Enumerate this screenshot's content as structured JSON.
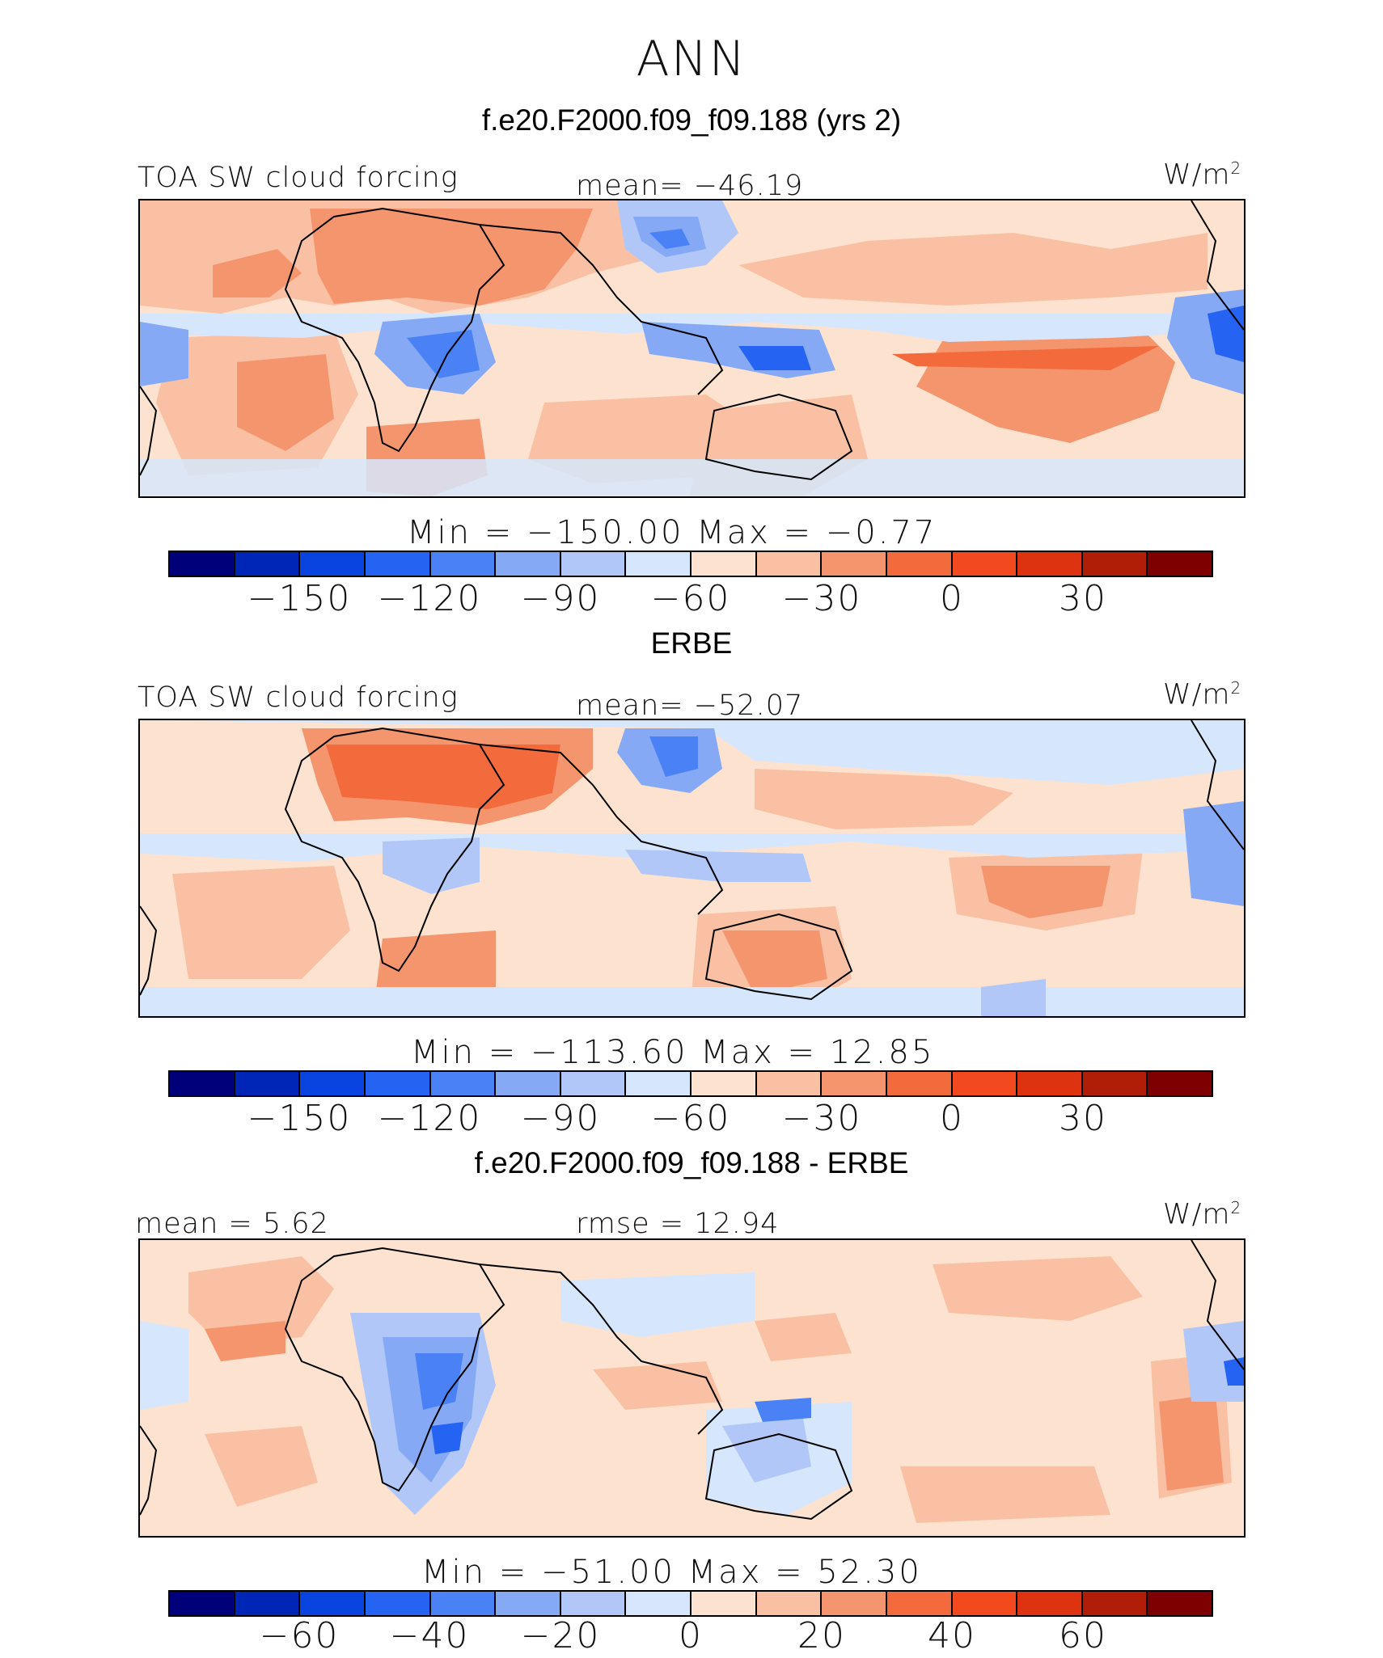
{
  "figure": {
    "title": "ANN",
    "case_title": "f.e20.F2000.f09_f09.188 (yrs 2)",
    "obs_title": "ERBE",
    "diff_title": "f.e20.F2000.f09_f09.188 - ERBE"
  },
  "colors": {
    "palette": [
      "#00007a",
      "#0026b8",
      "#0a44e0",
      "#2563f2",
      "#4a82f5",
      "#86a9f6",
      "#b1c7f8",
      "#d6e6fc",
      "#fde3cf",
      "#fac0a3",
      "#f4956e",
      "#f36a3c",
      "#f2491f",
      "#de3310",
      "#b01e08",
      "#7f0000"
    ]
  },
  "panels": [
    {
      "variable": "TOA SW cloud forcing",
      "mean_text": "mean= −46.19",
      "units": "W/m",
      "units_sup": "2",
      "minmax_text": "Min  =  −150.00  Max  =   −0.77",
      "tick_labels": [
        "−150",
        "−120",
        "−90",
        "−60",
        "−30",
        "0",
        "30"
      ]
    },
    {
      "variable": "TOA SW cloud forcing",
      "mean_text": "mean= −52.07",
      "units": "W/m",
      "units_sup": "2",
      "minmax_text": "Min  =  −113.60  Max  =   12.85",
      "tick_labels": [
        "−150",
        "−120",
        "−90",
        "−60",
        "−30",
        "0",
        "30"
      ]
    },
    {
      "mean_text": "mean =   5.62",
      "rmse_text": "rmse =   12.94",
      "units": "W/m",
      "units_sup": "2",
      "minmax_text": "Min  =  −51.00  Max  =   52.30",
      "tick_labels": [
        "−60",
        "−40",
        "−20",
        "0",
        "20",
        "40",
        "60"
      ]
    }
  ],
  "chart_data": [
    {
      "type": "heatmap",
      "title": "f.e20.F2000.f09_f09.188 (yrs 2)",
      "variable": "TOA SW cloud forcing",
      "units": "W/m2",
      "mean": -46.19,
      "min": -150.0,
      "max": -0.77,
      "contour_levels": [
        -160,
        -150,
        -140,
        -130,
        -120,
        -110,
        -100,
        -90,
        -80,
        -70,
        -60,
        -50,
        -40,
        -30,
        -20,
        -10,
        0,
        10,
        20,
        30,
        40,
        50
      ],
      "colorbar_ticks": [
        -150,
        -120,
        -90,
        -60,
        -30,
        0,
        30
      ]
    },
    {
      "type": "heatmap",
      "title": "ERBE",
      "variable": "TOA SW cloud forcing",
      "units": "W/m2",
      "mean": -52.07,
      "min": -113.6,
      "max": 12.85,
      "colorbar_ticks": [
        -150,
        -120,
        -90,
        -60,
        -30,
        0,
        30
      ]
    },
    {
      "type": "heatmap",
      "title": "f.e20.F2000.f09_f09.188 - ERBE",
      "units": "W/m2",
      "mean": 5.62,
      "rmse": 12.94,
      "min": -51.0,
      "max": 52.3,
      "colorbar_ticks": [
        -60,
        -40,
        -20,
        0,
        20,
        40,
        60
      ]
    }
  ]
}
